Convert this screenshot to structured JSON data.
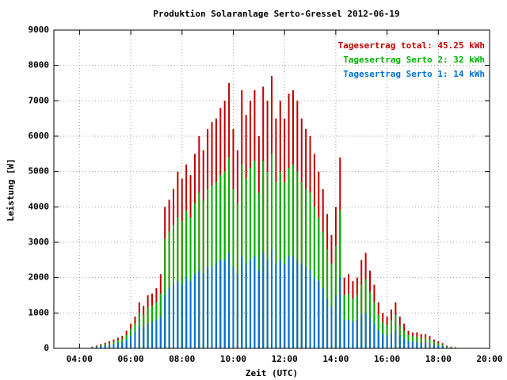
{
  "chart_data": {
    "type": "bar",
    "title": "Produktion Solaranlage Serto-Gressel 2012-06-19",
    "x_label": "Zeit (UTC)",
    "y_label": "Leistung [W]",
    "x": [
      270,
      280,
      290,
      300,
      310,
      320,
      330,
      340,
      350,
      360,
      370,
      380,
      390,
      400,
      410,
      420,
      430,
      440,
      450,
      460,
      470,
      480,
      490,
      500,
      510,
      520,
      530,
      540,
      550,
      560,
      570,
      580,
      590,
      600,
      610,
      620,
      630,
      640,
      650,
      660,
      670,
      680,
      690,
      700,
      710,
      720,
      730,
      740,
      750,
      760,
      770,
      780,
      790,
      800,
      810,
      820,
      830,
      840,
      850,
      860,
      870,
      880,
      890,
      900,
      910,
      920,
      930,
      940,
      950,
      960,
      970,
      980,
      990,
      1000,
      1010,
      1020,
      1030,
      1040,
      1050,
      1060,
      1070,
      1080,
      1090,
      1100,
      1110,
      1120
    ],
    "series": [
      {
        "name": "Tagesertrag total: 45.25 kWh",
        "color": "#c00000",
        "values": [
          50,
          80,
          120,
          160,
          200,
          250,
          300,
          350,
          500,
          700,
          900,
          1300,
          1200,
          1500,
          1550,
          1700,
          2100,
          4000,
          4200,
          4500,
          5000,
          4800,
          5200,
          4900,
          5500,
          6000,
          5600,
          6200,
          6400,
          6500,
          6800,
          7000,
          7500,
          6200,
          5600,
          7300,
          6600,
          7000,
          7300,
          6000,
          7400,
          7000,
          7700,
          6500,
          7000,
          6500,
          7200,
          7300,
          7000,
          6500,
          6200,
          6000,
          5500,
          5000,
          4500,
          3800,
          3200,
          4000,
          5400,
          2000,
          2100,
          1900,
          2000,
          2500,
          2700,
          2200,
          1800,
          1300,
          1000,
          900,
          1100,
          1300,
          900,
          700,
          500,
          450,
          450,
          400,
          400,
          350,
          250,
          200,
          150,
          80,
          50,
          30
        ]
      },
      {
        "name": "Tagesertrag Serto 2: 32 kWh",
        "color": "#00b000",
        "values": [
          40,
          60,
          90,
          120,
          150,
          190,
          230,
          270,
          380,
          550,
          700,
          1000,
          950,
          1150,
          1200,
          1300,
          1550,
          3100,
          3300,
          3500,
          3700,
          3600,
          3900,
          3700,
          4100,
          4400,
          4200,
          4500,
          4600,
          4700,
          4900,
          5000,
          5400,
          4500,
          4100,
          5200,
          4800,
          5100,
          5300,
          4400,
          5300,
          5000,
          5500,
          4700,
          5000,
          4700,
          5100,
          5200,
          5000,
          4700,
          4500,
          4400,
          4000,
          3700,
          3300,
          2800,
          2400,
          2900,
          3900,
          1500,
          1550,
          1400,
          1500,
          1800,
          1950,
          1600,
          1300,
          950,
          750,
          650,
          800,
          950,
          650,
          500,
          380,
          340,
          340,
          300,
          300,
          260,
          190,
          150,
          110,
          60,
          40,
          20
        ]
      },
      {
        "name": "Tagesertrag Serto 1: 14 kWh",
        "color": "#0070d0",
        "values": [
          30,
          40,
          60,
          80,
          100,
          120,
          150,
          170,
          250,
          350,
          450,
          600,
          600,
          700,
          750,
          800,
          900,
          1500,
          1700,
          1800,
          1900,
          1800,
          2000,
          1900,
          2100,
          2200,
          2100,
          2300,
          2300,
          2400,
          2500,
          2500,
          2700,
          2300,
          2100,
          2600,
          2400,
          2500,
          2600,
          2200,
          2700,
          2500,
          2800,
          2400,
          2500,
          2400,
          2600,
          2600,
          2500,
          2400,
          2300,
          2200,
          2000,
          1900,
          1700,
          1400,
          1200,
          1500,
          2000,
          800,
          800,
          750,
          800,
          950,
          1000,
          850,
          700,
          500,
          400,
          350,
          400,
          500,
          350,
          280,
          200,
          180,
          180,
          160,
          160,
          140,
          100,
          80,
          60,
          30,
          20,
          10
        ]
      }
    ],
    "xlim": [
      180,
      1200
    ],
    "xticks": [
      {
        "value": 240,
        "label": "04:00"
      },
      {
        "value": 360,
        "label": "06:00"
      },
      {
        "value": 480,
        "label": "08:00"
      },
      {
        "value": 600,
        "label": "10:00"
      },
      {
        "value": 720,
        "label": "12:00"
      },
      {
        "value": 840,
        "label": "14:00"
      },
      {
        "value": 960,
        "label": "16:00"
      },
      {
        "value": 1080,
        "label": "18:00"
      },
      {
        "value": 1200,
        "label": "20:00"
      }
    ],
    "ylim": [
      0,
      9000
    ],
    "yticks": [
      0,
      1000,
      2000,
      3000,
      4000,
      5000,
      6000,
      7000,
      8000,
      9000
    ],
    "grid": true,
    "legend": "upper right"
  }
}
